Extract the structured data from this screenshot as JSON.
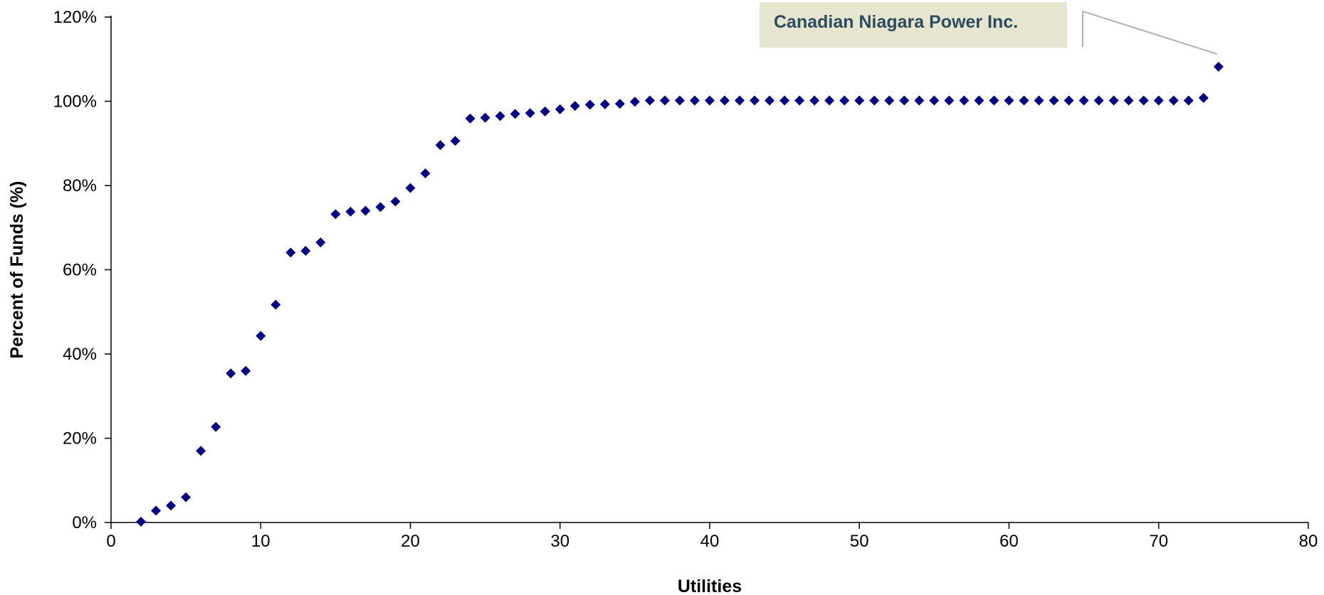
{
  "chart_data": {
    "type": "scatter",
    "xlabel": "Utilities",
    "ylabel": "Percent of Funds (%)",
    "xlim": [
      0,
      80
    ],
    "ylim": [
      0,
      120
    ],
    "x_ticks": [
      0,
      10,
      20,
      30,
      40,
      50,
      60,
      70,
      80
    ],
    "y_ticks": [
      0,
      20,
      40,
      60,
      80,
      100,
      120
    ],
    "y_tick_suffix": "%",
    "grid": false,
    "legend": "none",
    "marker": "diamond",
    "series": [
      {
        "color": "#000080",
        "points": [
          [
            2,
            0.2
          ],
          [
            3,
            2.8
          ],
          [
            4,
            4.0
          ],
          [
            5,
            6.0
          ],
          [
            6,
            17.0
          ],
          [
            7,
            22.7
          ],
          [
            8,
            35.4
          ],
          [
            9,
            36.0
          ],
          [
            10,
            44.3
          ],
          [
            11,
            51.7
          ],
          [
            12,
            64.1
          ],
          [
            13,
            64.5
          ],
          [
            14,
            66.5
          ],
          [
            15,
            73.2
          ],
          [
            16,
            73.8
          ],
          [
            17,
            74.0
          ],
          [
            18,
            74.9
          ],
          [
            19,
            76.2
          ],
          [
            20,
            79.4
          ],
          [
            21,
            82.9
          ],
          [
            22,
            89.6
          ],
          [
            23,
            90.6
          ],
          [
            24,
            95.9
          ],
          [
            25,
            96.1
          ],
          [
            26,
            96.5
          ],
          [
            27,
            97.0
          ],
          [
            28,
            97.2
          ],
          [
            29,
            97.6
          ],
          [
            30,
            98.1
          ],
          [
            31,
            98.9
          ],
          [
            32,
            99.2
          ],
          [
            33,
            99.3
          ],
          [
            34,
            99.4
          ],
          [
            35,
            99.9
          ],
          [
            36,
            100.2
          ],
          [
            37,
            100.2
          ],
          [
            38,
            100.2
          ],
          [
            39,
            100.2
          ],
          [
            40,
            100.2
          ],
          [
            41,
            100.2
          ],
          [
            42,
            100.2
          ],
          [
            43,
            100.2
          ],
          [
            44,
            100.2
          ],
          [
            45,
            100.2
          ],
          [
            46,
            100.2
          ],
          [
            47,
            100.2
          ],
          [
            48,
            100.2
          ],
          [
            49,
            100.2
          ],
          [
            50,
            100.2
          ],
          [
            51,
            100.2
          ],
          [
            52,
            100.2
          ],
          [
            53,
            100.2
          ],
          [
            54,
            100.2
          ],
          [
            55,
            100.2
          ],
          [
            56,
            100.2
          ],
          [
            57,
            100.2
          ],
          [
            58,
            100.2
          ],
          [
            59,
            100.2
          ],
          [
            60,
            100.2
          ],
          [
            61,
            100.2
          ],
          [
            62,
            100.2
          ],
          [
            63,
            100.2
          ],
          [
            64,
            100.2
          ],
          [
            65,
            100.2
          ],
          [
            66,
            100.2
          ],
          [
            67,
            100.2
          ],
          [
            68,
            100.2
          ],
          [
            69,
            100.2
          ],
          [
            70,
            100.2
          ],
          [
            71,
            100.2
          ],
          [
            72,
            100.2
          ],
          [
            73,
            100.8
          ],
          [
            74,
            108.2
          ]
        ]
      }
    ],
    "annotations": [
      {
        "text": "Canadian Niagara Power Inc.",
        "target": [
          74,
          108.2
        ],
        "box_color": "#e6e5cf",
        "text_color": "#2e4a5e",
        "leader_color": "#b0b0b0"
      }
    ]
  }
}
